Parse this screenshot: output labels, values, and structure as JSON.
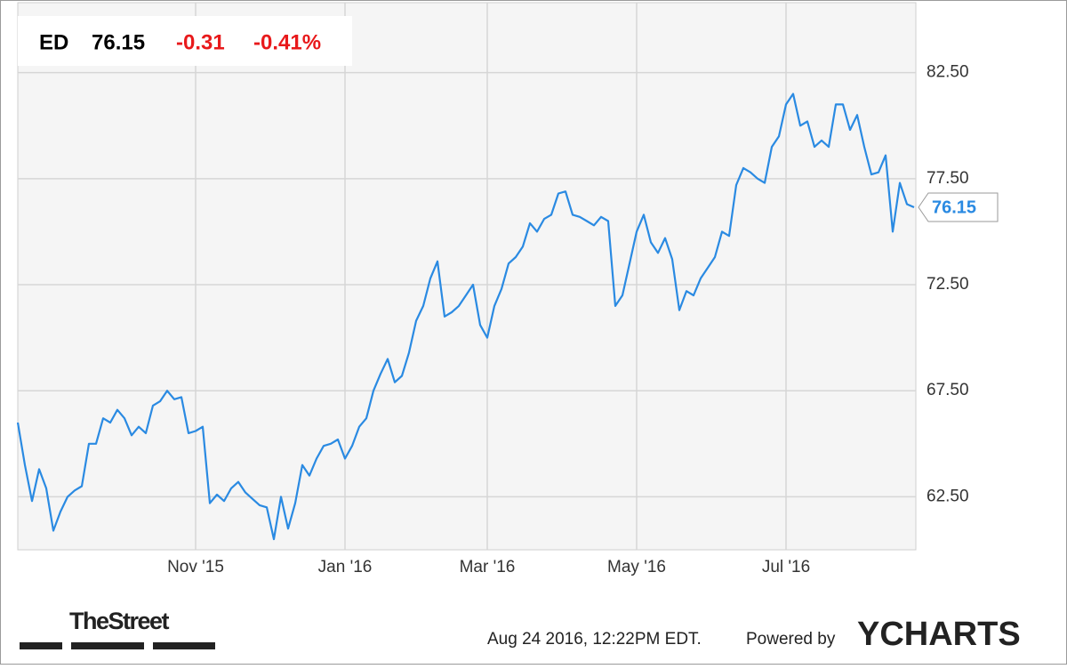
{
  "chart_data": {
    "type": "line",
    "symbol": "ED",
    "price": "76.15",
    "change": "-0.31",
    "change_pct": "-0.41%",
    "categories": [
      null,
      null,
      null,
      null,
      null,
      null,
      null,
      null,
      null,
      null,
      null,
      null,
      null,
      null,
      null,
      null,
      null,
      null,
      null,
      null,
      null,
      null,
      null,
      null,
      null,
      "Nov '15",
      null,
      null,
      null,
      null,
      null,
      null,
      null,
      null,
      null,
      null,
      null,
      null,
      null,
      null,
      null,
      null,
      null,
      null,
      null,
      null,
      "Jan '16",
      null,
      null,
      null,
      null,
      null,
      null,
      null,
      null,
      null,
      null,
      null,
      null,
      null,
      null,
      null,
      null,
      null,
      null,
      null,
      "Mar '16",
      null,
      null,
      null,
      null,
      null,
      null,
      null,
      null,
      null,
      null,
      null,
      null,
      null,
      null,
      null,
      null,
      null,
      null,
      null,
      null,
      "May '16",
      null,
      null,
      null,
      null,
      null,
      null,
      null,
      null,
      null,
      null,
      null,
      null,
      null,
      null,
      null,
      null,
      null,
      null,
      null,
      null,
      "Jul '16",
      null,
      null,
      null,
      null,
      null,
      null,
      null,
      null,
      null,
      null,
      null,
      null,
      null,
      null,
      null,
      null,
      null,
      null
    ],
    "series": [
      {
        "name": "ED",
        "color": "#2a8ae2",
        "values": [
          66.0,
          64.0,
          62.3,
          63.8,
          62.9,
          60.9,
          61.8,
          62.5,
          62.8,
          63.0,
          65.0,
          65.0,
          66.2,
          66.0,
          66.6,
          66.2,
          65.4,
          65.8,
          65.5,
          66.8,
          67.0,
          67.5,
          67.1,
          67.2,
          65.5,
          65.6,
          65.8,
          62.2,
          62.6,
          62.3,
          62.9,
          63.2,
          62.7,
          62.4,
          62.1,
          62.0,
          60.5,
          62.5,
          61.0,
          62.2,
          64.0,
          63.5,
          64.3,
          64.9,
          65.0,
          65.2,
          64.3,
          64.9,
          65.8,
          66.2,
          67.5,
          68.3,
          69.0,
          67.9,
          68.2,
          69.3,
          70.8,
          71.5,
          72.8,
          73.6,
          71.0,
          71.2,
          71.5,
          72.0,
          72.5,
          70.6,
          70.0,
          71.5,
          72.3,
          73.5,
          73.8,
          74.3,
          75.4,
          75.0,
          75.6,
          75.8,
          76.8,
          76.9,
          75.8,
          75.7,
          75.5,
          75.3,
          75.7,
          75.5,
          71.5,
          72.0,
          73.5,
          75.0,
          75.8,
          74.5,
          74.0,
          74.7,
          73.7,
          71.3,
          72.2,
          72.0,
          72.8,
          73.3,
          73.8,
          75.0,
          74.8,
          77.2,
          78.0,
          77.8,
          77.5,
          77.3,
          79.0,
          79.5,
          81.0,
          81.5,
          80.0,
          80.2,
          79.0,
          79.3,
          79.0,
          81.0,
          81.0,
          79.8,
          80.5,
          79.0,
          77.7,
          77.8,
          78.6,
          75.0,
          77.3,
          76.3,
          76.15
        ]
      }
    ],
    "ylim": [
      60.0,
      85.8
    ],
    "yticks": [
      {
        "value": 62.5,
        "label": "62.50"
      },
      {
        "value": 67.5,
        "label": "67.50"
      },
      {
        "value": 72.5,
        "label": "72.50"
      },
      {
        "value": 77.5,
        "label": "77.50"
      },
      {
        "value": 82.5,
        "label": "82.50"
      }
    ],
    "grid": true,
    "timestamp": "Aug 24 2016, 12:22PM EDT.",
    "powered_by": "Powered by",
    "brand": "YCHARTS",
    "source_logo": "TheStreet"
  }
}
